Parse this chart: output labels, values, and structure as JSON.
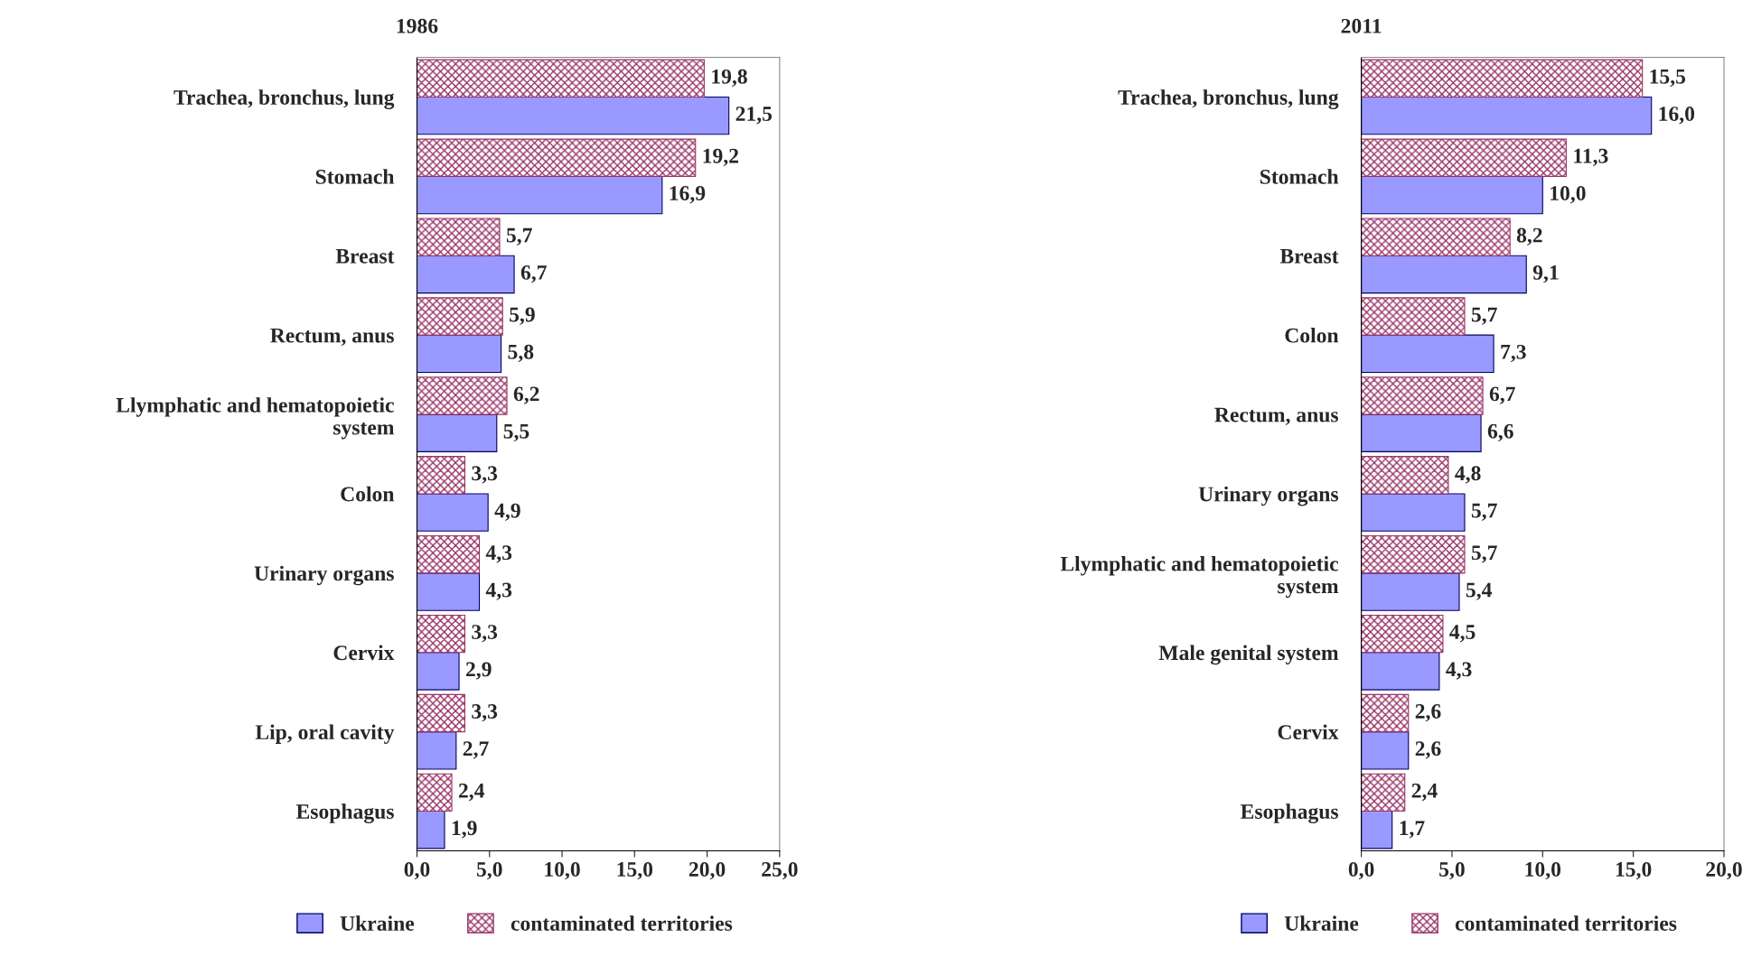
{
  "chart_data": [
    {
      "type": "bar",
      "orientation": "horizontal",
      "title": "1986",
      "legend": "bottom",
      "grid": false,
      "categories": [
        "Trachea, bronchus, lung",
        "Stomach",
        "Breast",
        "Rectum, anus",
        "Llymphatic and hematopoietic\nsystem",
        "Colon",
        "Urinary organs",
        "Cervix",
        "Lip, oral cavity",
        "Esophagus"
      ],
      "series": [
        {
          "name": "Ukraine",
          "color": "#9999ff",
          "values": [
            21.5,
            16.9,
            6.7,
            5.8,
            5.5,
            4.9,
            4.3,
            2.9,
            2.7,
            1.9
          ],
          "value_labels": [
            "21,5",
            "16,9",
            "6,7",
            "5,8",
            "5,5",
            "4,9",
            "4,3",
            "2,9",
            "2,7",
            "1,9"
          ]
        },
        {
          "name": "contaminated territories",
          "color": "#993366",
          "values": [
            19.8,
            19.2,
            5.7,
            5.9,
            6.2,
            3.3,
            4.3,
            3.3,
            3.3,
            2.4
          ],
          "value_labels": [
            "19,8",
            "19,2",
            "5,7",
            "5,9",
            "6,2",
            "3,3",
            "4,3",
            "3,3",
            "3,3",
            "2,4"
          ]
        }
      ],
      "xlim": [
        0,
        25
      ],
      "xticks": [
        {
          "value": 0,
          "label": "0,0"
        },
        {
          "value": 5,
          "label": "5,0"
        },
        {
          "value": 10,
          "label": "10,0"
        },
        {
          "value": 15,
          "label": "15,0"
        },
        {
          "value": 20,
          "label": "20,0"
        },
        {
          "value": 25,
          "label": "25,0"
        }
      ]
    },
    {
      "type": "bar",
      "orientation": "horizontal",
      "title": "2011",
      "legend": "bottom",
      "grid": false,
      "categories": [
        "Trachea, bronchus, lung",
        "Stomach",
        "Breast",
        "Colon",
        "Rectum, anus",
        "Urinary organs",
        "Llymphatic and hematopoietic\nsystem",
        "Male genital system",
        "Cervix",
        "Esophagus"
      ],
      "series": [
        {
          "name": "Ukraine",
          "color": "#9999ff",
          "values": [
            16.0,
            10.0,
            9.1,
            7.3,
            6.6,
            5.7,
            5.4,
            4.3,
            2.6,
            1.7
          ],
          "value_labels": [
            "16,0",
            "10,0",
            "9,1",
            "7,3",
            "6,6",
            "5,7",
            "5,4",
            "4,3",
            "2,6",
            "1,7"
          ]
        },
        {
          "name": "contaminated territories",
          "color": "#993366",
          "values": [
            15.5,
            11.3,
            8.2,
            5.7,
            6.7,
            4.8,
            5.7,
            4.5,
            2.6,
            2.4
          ],
          "value_labels": [
            "15,5",
            "11,3",
            "8,2",
            "5,7",
            "6,7",
            "4,8",
            "5,7",
            "4,5",
            "2,6",
            "2,4"
          ]
        }
      ],
      "xlim": [
        0,
        20
      ],
      "xticks": [
        {
          "value": 0,
          "label": "0,0"
        },
        {
          "value": 5,
          "label": "5,0"
        },
        {
          "value": 10,
          "label": "10,0"
        },
        {
          "value": 15,
          "label": "15,0"
        },
        {
          "value": 20,
          "label": "20,0"
        }
      ]
    }
  ]
}
